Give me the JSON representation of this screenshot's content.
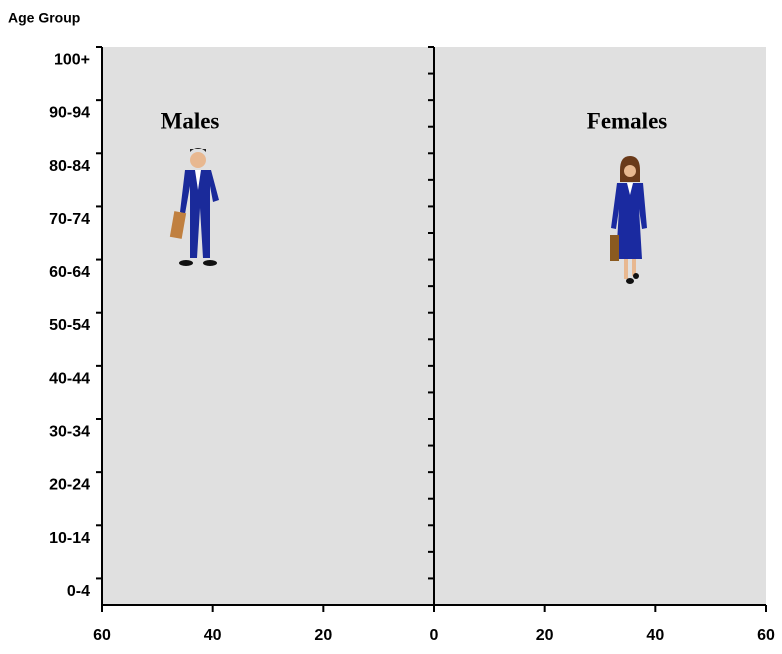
{
  "chart_data": {
    "type": "bar",
    "orientation": "horizontal",
    "y_label": "Age Group",
    "annotations": [
      "Males",
      "Females"
    ],
    "categories": [
      "0-4",
      null,
      "10-14",
      null,
      "20-24",
      null,
      "30-34",
      null,
      "40-44",
      null,
      "50-54",
      null,
      "60-64",
      null,
      "70-74",
      null,
      "80-84",
      null,
      "90-94",
      null,
      "100+"
    ],
    "xlim": [
      -60,
      60
    ],
    "xticks": [
      {
        "value": -60,
        "label": "60"
      },
      {
        "value": -40,
        "label": "40"
      },
      {
        "value": -20,
        "label": "20"
      },
      0,
      20,
      40,
      60
    ],
    "background": "#e0e0e0"
  }
}
